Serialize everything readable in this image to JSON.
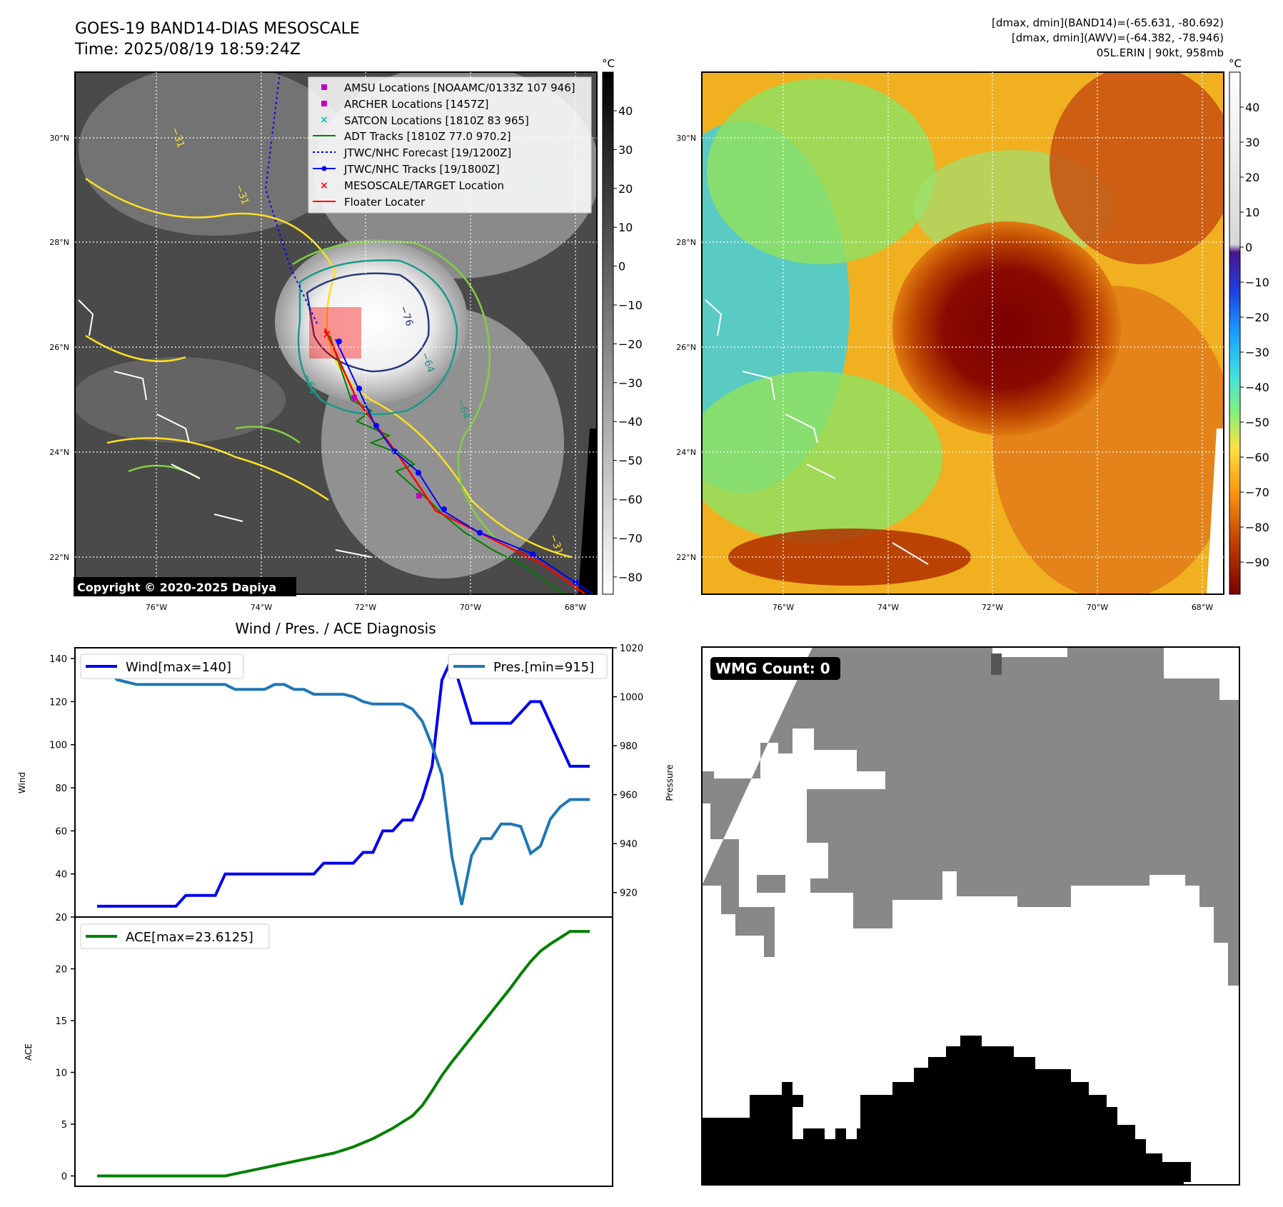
{
  "header": {
    "title_line1": "GOES-19 BAND14-DIAS MESOSCALE",
    "title_line2": "Time: 2025/08/19 18:59:24Z",
    "right_line1": "[dmax, dmin](BAND14)=(-65.631, -80.692)",
    "right_line2": "[dmax, dmin](AWV)=(-64.382, -78.946)",
    "right_line3": "05L.ERIN | 90kt, 958mb"
  },
  "map_common": {
    "lat_labels": [
      "30°N",
      "28°N",
      "26°N",
      "24°N",
      "22°N"
    ],
    "lon_labels": [
      "76°W",
      "74°W",
      "72°W",
      "70°W",
      "68°W"
    ]
  },
  "ir_map": {
    "legend": [
      "AMSU Locations [NOAAMC/0133Z 107 946]",
      "ARCHER Locations [1457Z]",
      "SATCON Locations [1810Z 83 965]",
      "ADT Tracks [1810Z 77.0 970.2]",
      "JTWC/NHC Forecast [19/1200Z]",
      "JTWC/NHC Tracks [19/1800Z]",
      "MESOSCALE/TARGET Location",
      "Floater Locater"
    ],
    "colorbar_unit": "°C",
    "colorbar_ticks": [
      "40",
      "30",
      "20",
      "10",
      "0",
      "−10",
      "−20",
      "−30",
      "−40",
      "−50",
      "−60",
      "−70",
      "−80"
    ],
    "contour_labels": [
      "−76",
      "−64",
      "−64",
      "−31",
      "−31",
      "−31",
      "−64",
      "−64"
    ],
    "copyright": "Copyright © 2020-2025 Dapiya"
  },
  "awv_map": {
    "colorbar_unit": "°C",
    "colorbar_ticks": [
      "40",
      "30",
      "20",
      "10",
      "0",
      "−10",
      "−20",
      "−30",
      "−40",
      "−50",
      "−60",
      "−70",
      "−80",
      "−90"
    ]
  },
  "wmg": {
    "count_label": "WMG Count: 0"
  },
  "colors": {
    "wind": "#0000ee",
    "pressure": "#1f77b4",
    "ace": "#008000",
    "track_jtwc": "#0000ff",
    "track_adt": "#008000",
    "floater": "#ff0000",
    "amsu": "#c000c0",
    "satcon": "#00bfbf"
  },
  "chart_data": [
    {
      "type": "line",
      "title": "Wind / Pres. / ACE Diagnosis",
      "x": [
        0,
        1,
        2,
        3,
        4,
        5,
        6,
        7,
        8,
        9,
        10,
        11,
        12,
        13,
        14,
        15,
        16,
        17,
        18,
        19,
        20,
        21,
        22,
        23,
        24,
        25,
        26,
        27,
        28,
        29,
        30,
        31,
        32,
        33,
        34,
        35,
        36,
        37,
        38,
        39,
        40,
        41,
        42,
        43,
        44,
        45,
        46,
        47,
        48,
        49,
        50
      ],
      "series": [
        {
          "name": "Wind[max=140]",
          "axis": "left",
          "ylabel": "Wind",
          "ylim": [
            20,
            145
          ],
          "yticks": [
            20,
            40,
            60,
            80,
            100,
            120,
            140
          ],
          "values": [
            25,
            25,
            25,
            25,
            25,
            25,
            25,
            25,
            25,
            30,
            30,
            30,
            30,
            40,
            40,
            40,
            40,
            40,
            40,
            40,
            40,
            40,
            40,
            45,
            45,
            45,
            45,
            50,
            50,
            60,
            60,
            65,
            65,
            75,
            90,
            130,
            140,
            125,
            110,
            110,
            110,
            110,
            110,
            115,
            120,
            120,
            110,
            100,
            90,
            90,
            90
          ]
        },
        {
          "name": "Pres.[min=915]",
          "axis": "right",
          "ylabel": "Pressure",
          "ylim": [
            910,
            1020
          ],
          "yticks": [
            920,
            940,
            960,
            980,
            1000,
            1020
          ],
          "values": [
            1012,
            1012,
            1007,
            1006,
            1005,
            1005,
            1005,
            1005,
            1005,
            1005,
            1005,
            1005,
            1005,
            1005,
            1003,
            1003,
            1003,
            1003,
            1005,
            1005,
            1003,
            1003,
            1001,
            1001,
            1001,
            1001,
            1000,
            998,
            997,
            997,
            997,
            997,
            995,
            990,
            980,
            968,
            935,
            915,
            935,
            942,
            942,
            948,
            948,
            947,
            936,
            939,
            950,
            955,
            958,
            958,
            958
          ]
        },
        {
          "name": "ACE[max=23.6125]",
          "axis": "lower",
          "ylabel": "ACE",
          "ylim": [
            -1,
            25
          ],
          "yticks": [
            0,
            5,
            10,
            15,
            20
          ],
          "values": [
            0,
            0,
            0,
            0,
            0,
            0,
            0,
            0,
            0,
            0,
            0,
            0,
            0,
            0,
            0.2,
            0.4,
            0.6,
            0.8,
            1,
            1.2,
            1.4,
            1.6,
            1.8,
            2.0,
            2.2,
            2.5,
            2.8,
            3.2,
            3.6,
            4.1,
            4.6,
            5.2,
            5.8,
            6.8,
            8.2,
            9.7,
            11,
            12.2,
            13.4,
            14.6,
            15.8,
            17,
            18.2,
            19.5,
            20.7,
            21.7,
            22.4,
            23.0,
            23.6125,
            23.6125,
            23.6125
          ]
        }
      ],
      "x_plot_points": 51
    }
  ]
}
